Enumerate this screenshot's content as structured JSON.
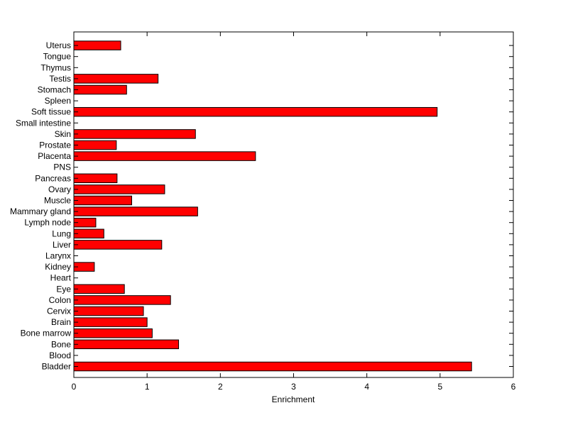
{
  "chart_data": {
    "type": "bar",
    "orientation": "horizontal",
    "categories": [
      "Bladder",
      "Blood",
      "Bone",
      "Bone marrow",
      "Brain",
      "Cervix",
      "Colon",
      "Eye",
      "Heart",
      "Kidney",
      "Larynx",
      "Liver",
      "Lung",
      "Lymph node",
      "Mammary gland",
      "Muscle",
      "Ovary",
      "Pancreas",
      "PNS",
      "Placenta",
      "Prostate",
      "Skin",
      "Small intestine",
      "Soft tissue",
      "Spleen",
      "Stomach",
      "Testis",
      "Thymus",
      "Tongue",
      "Uterus"
    ],
    "values": [
      5.43,
      0,
      1.43,
      1.07,
      1.0,
      0.95,
      1.32,
      0.69,
      0,
      0.28,
      0,
      1.2,
      0.41,
      0.3,
      1.69,
      0.79,
      1.24,
      0.59,
      0,
      2.48,
      0.58,
      1.66,
      0,
      4.96,
      0,
      0.72,
      1.15,
      0,
      0,
      0.64
    ],
    "title": "",
    "xlabel": "Enrichment",
    "ylabel": "",
    "xlim": [
      0,
      6
    ],
    "xticks": [
      0,
      1,
      2,
      3,
      4,
      5,
      6
    ],
    "bar_color": "#ff0000",
    "grid": false
  }
}
